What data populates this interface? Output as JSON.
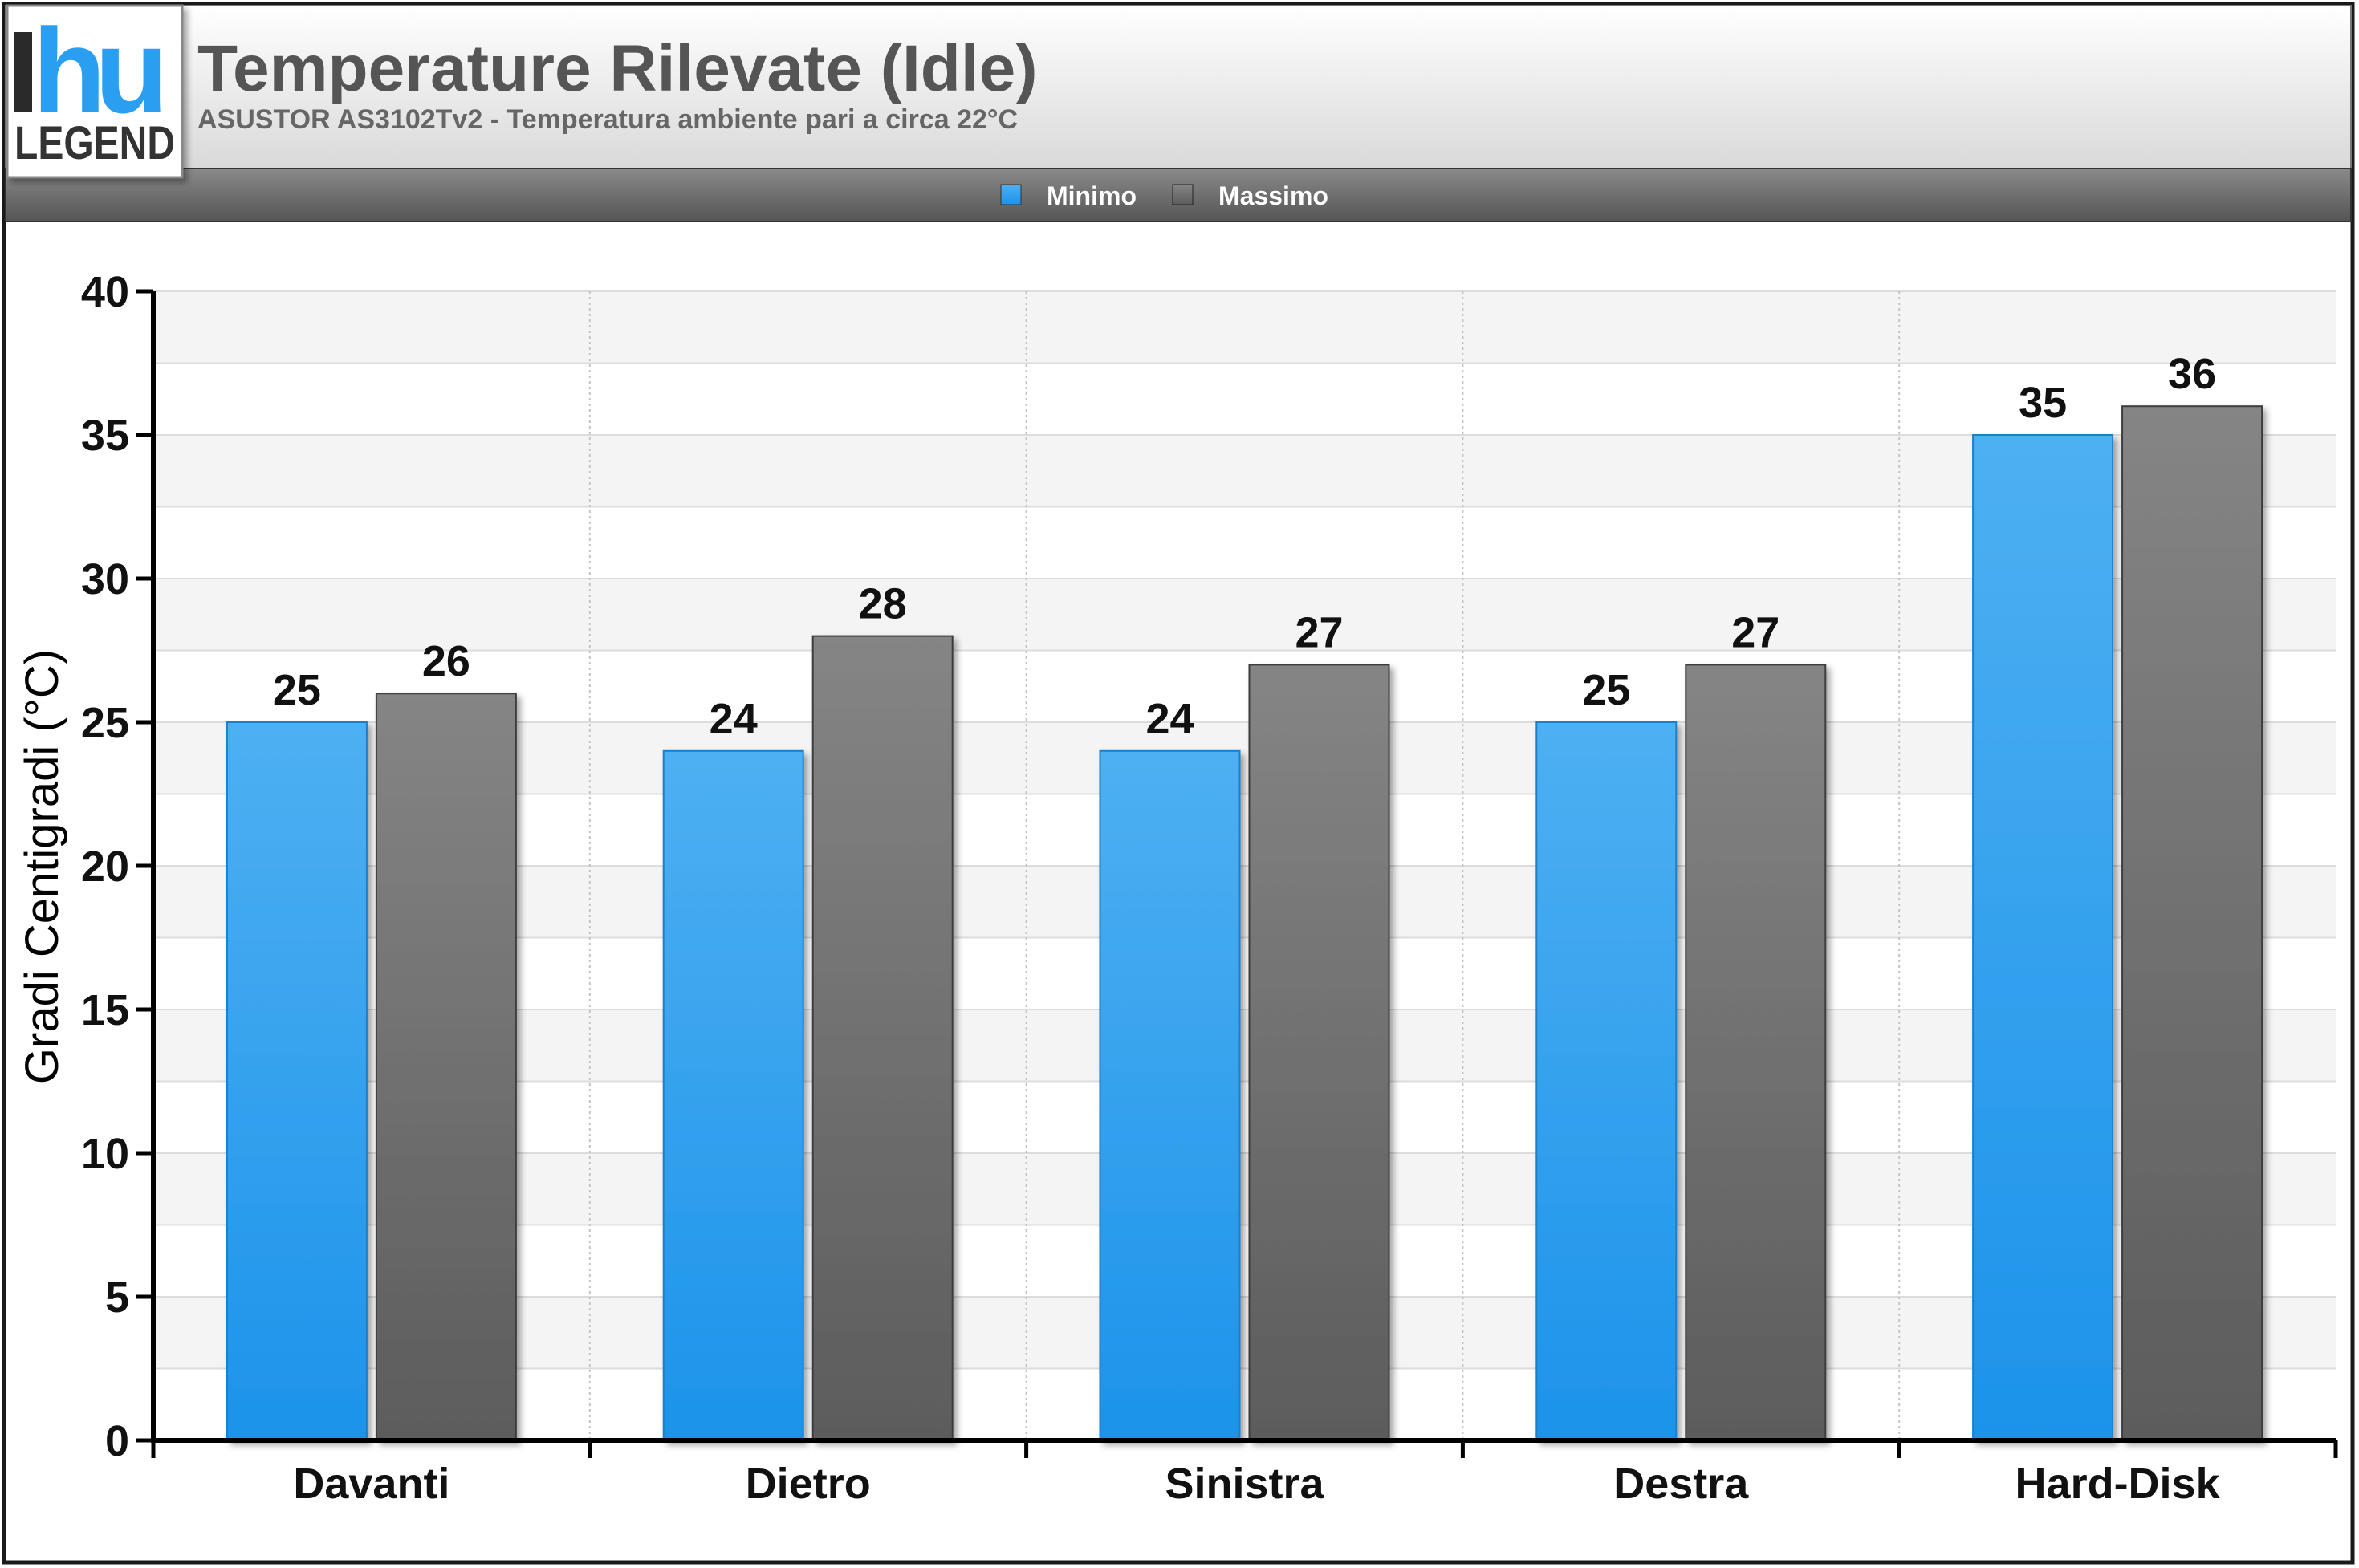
{
  "header": {
    "title": "Temperature Rilevate (Idle)",
    "subtitle": "ASUSTOR AS3102Tv2 - Temperatura ambiente pari a circa 22°C"
  },
  "logo": {
    "mark": "hu",
    "text": "LEGEND"
  },
  "legend": {
    "items": [
      {
        "label": "Minimo",
        "color": "#2b9af0"
      },
      {
        "label": "Massimo",
        "color": "#6e6e6e"
      }
    ]
  },
  "chart_data": {
    "type": "bar",
    "categories": [
      "Davanti",
      "Dietro",
      "Sinistra",
      "Destra",
      "Hard-Disk"
    ],
    "series": [
      {
        "name": "Minimo",
        "values": [
          25,
          24,
          24,
          25,
          35
        ],
        "color": "#2b9af0"
      },
      {
        "name": "Massimo",
        "values": [
          26,
          28,
          27,
          27,
          36
        ],
        "color": "#6e6e6e"
      }
    ],
    "ylabel": "Gradi Centigradi (°C)",
    "ylim": [
      0,
      40
    ],
    "yticks": [
      0,
      5,
      10,
      15,
      20,
      25,
      30,
      35,
      40
    ],
    "grid": true,
    "legend_position": "top-center"
  }
}
